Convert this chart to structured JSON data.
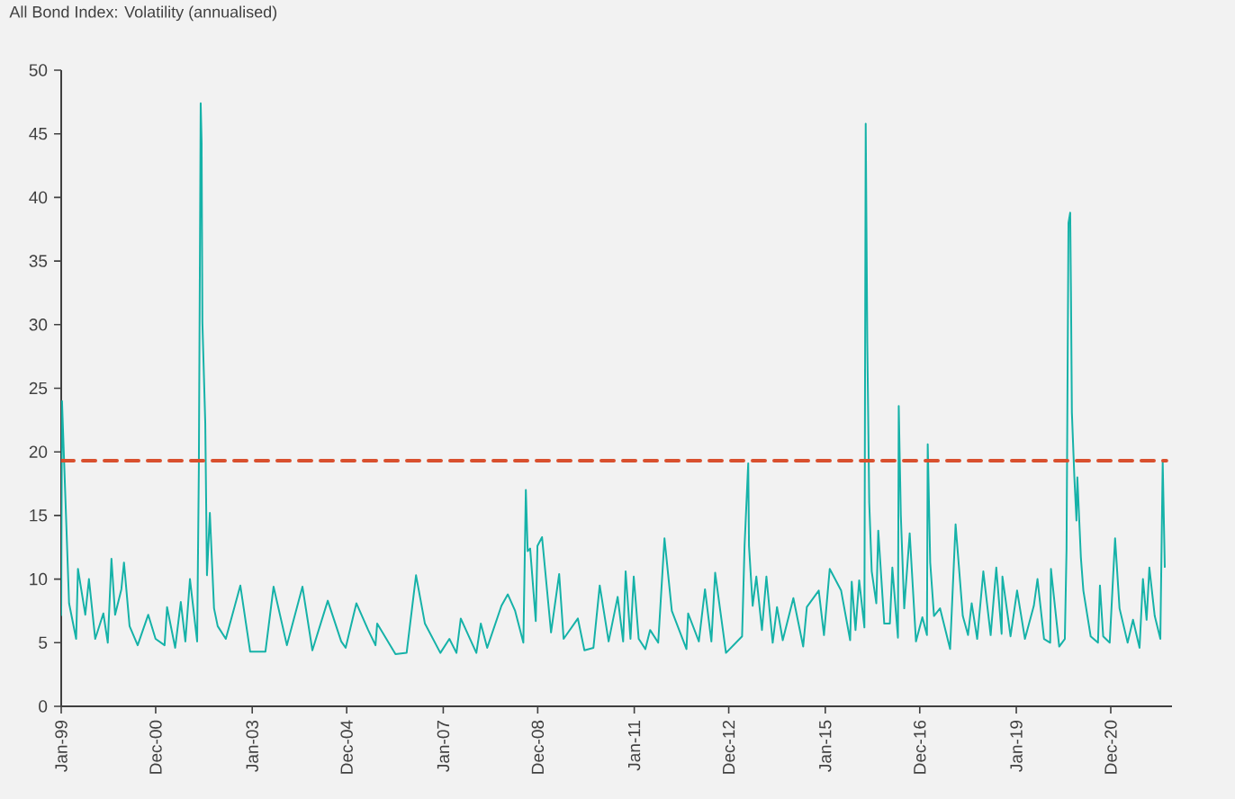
{
  "chart_data": {
    "type": "line",
    "title": "All Bond Index: Volatility (annualised)",
    "xlim": [
      "1999-01-01",
      "2022-04-06"
    ],
    "ylim": [
      0,
      50
    ],
    "yticks": [
      0,
      5,
      10,
      15,
      20,
      25,
      30,
      35,
      40,
      45,
      50
    ],
    "xticks": [
      {
        "value": "1999-01-01",
        "label": "Jan-99"
      },
      {
        "value": "2000-12-24",
        "label": "Dec-00"
      },
      {
        "value": "2003-01-01",
        "label": "Jan-03"
      },
      {
        "value": "2004-12-24",
        "label": "Dec-04"
      },
      {
        "value": "2007-01-01",
        "label": "Jan-07"
      },
      {
        "value": "2008-12-24",
        "label": "Dec-08"
      },
      {
        "value": "2011-01-01",
        "label": "Jan-11"
      },
      {
        "value": "2012-12-24",
        "label": "Dec-12"
      },
      {
        "value": "2015-01-01",
        "label": "Jan-15"
      },
      {
        "value": "2016-12-24",
        "label": "Dec-16"
      },
      {
        "value": "2019-01-01",
        "label": "Jan-19"
      },
      {
        "value": "2020-12-24",
        "label": "Dec-20"
      }
    ],
    "x": [
      "1999-01-01",
      "1999-01-07",
      "1999-03-02",
      "1999-04-25",
      "1999-05-09",
      "1999-07-04",
      "1999-08-01",
      "1999-09-18",
      "1999-11-19",
      "1999-12-23",
      "2000-01-20",
      "2000-02-17",
      "2000-04-05",
      "2000-04-25",
      "2000-06-07",
      "2000-08-08",
      "2000-10-28",
      "2000-12-23",
      "2001-03-02",
      "2001-03-21",
      "2001-05-22",
      "2001-07-04",
      "2001-08-08",
      "2001-09-12",
      "2001-11-06",
      "2001-11-19",
      "2001-12-03",
      "2001-12-10",
      "2001-12-16",
      "2002-01-07",
      "2002-01-20",
      "2002-02-11",
      "2002-03-15",
      "2002-04-12",
      "2002-06-13",
      "2002-10-02",
      "2002-12-16",
      "2003-04-12",
      "2003-06-13",
      "2003-09-23",
      "2004-01-20",
      "2004-04-05",
      "2004-08-01",
      "2004-11-12",
      "2004-12-16",
      "2005-03-08",
      "2005-06-06",
      "2005-08-01",
      "2005-08-14",
      "2006-01-01",
      "2006-03-27",
      "2006-06-07",
      "2006-08-14",
      "2006-12-10",
      "2007-02-17",
      "2007-04-12",
      "2007-05-15",
      "2007-09-11",
      "2007-10-15",
      "2007-12-03",
      "2008-03-21",
      "2008-05-09",
      "2008-07-04",
      "2008-09-05",
      "2008-09-24",
      "2008-10-08",
      "2008-10-27",
      "2008-12-09",
      "2008-12-22",
      "2009-01-26",
      "2009-04-05",
      "2009-06-06",
      "2009-07-10",
      "2009-10-27",
      "2009-12-16",
      "2010-02-23",
      "2010-04-12",
      "2010-06-19",
      "2010-08-27",
      "2010-10-08",
      "2010-10-27",
      "2010-12-03",
      "2010-12-28",
      "2011-02-04",
      "2011-03-27",
      "2011-05-02",
      "2011-07-03",
      "2011-08-20",
      "2011-10-15",
      "2012-02-04",
      "2012-02-17",
      "2012-05-09",
      "2012-06-25",
      "2012-08-13",
      "2012-09-11",
      "2012-12-03",
      "2013-04-05",
      "2013-04-24",
      "2013-05-22",
      "2013-05-28",
      "2013-06-25",
      "2013-07-23",
      "2013-09-04",
      "2013-10-08",
      "2013-11-25",
      "2013-12-28",
      "2014-02-10",
      "2014-05-02",
      "2014-07-16",
      "2014-08-13",
      "2014-11-12",
      "2014-12-22",
      "2015-02-04",
      "2015-05-02",
      "2015-07-10",
      "2015-07-22",
      "2015-08-20",
      "2015-09-17",
      "2015-10-27",
      "2015-11-06",
      "2015-11-18",
      "2015-12-03",
      "2015-12-22",
      "2016-01-26",
      "2016-02-10",
      "2016-03-27",
      "2016-05-09",
      "2016-05-28",
      "2016-07-10",
      "2016-07-16",
      "2016-08-01",
      "2016-08-27",
      "2016-10-08",
      "2016-11-25",
      "2017-01-13",
      "2017-02-17",
      "2017-02-23",
      "2017-03-14",
      "2017-04-12",
      "2017-05-28",
      "2017-08-13",
      "2017-09-24",
      "2017-11-18",
      "2017-12-28",
      "2018-01-25",
      "2018-03-08",
      "2018-04-24",
      "2018-06-19",
      "2018-08-01",
      "2018-09-11",
      "2018-09-17",
      "2018-11-18",
      "2019-01-07",
      "2019-03-08",
      "2019-05-15",
      "2019-06-12",
      "2019-08-01",
      "2019-09-17",
      "2019-09-23",
      "2019-11-25",
      "2020-01-07",
      "2020-01-20",
      "2020-02-04",
      "2020-02-17",
      "2020-02-23",
      "2020-03-01",
      "2020-03-20",
      "2020-04-05",
      "2020-04-12",
      "2020-05-09",
      "2020-05-28",
      "2020-07-23",
      "2020-09-17",
      "2020-10-02",
      "2020-10-27",
      "2020-12-16",
      "2021-01-26",
      "2021-03-01",
      "2021-05-02",
      "2021-06-12",
      "2021-08-01",
      "2021-08-27",
      "2021-09-24",
      "2021-10-15",
      "2021-11-25",
      "2022-01-07",
      "2022-01-25",
      "2022-02-10"
    ],
    "series": [
      {
        "color": "#16b2a8",
        "values": [
          7.1,
          24.0,
          8.1,
          5.3,
          10.8,
          7.2,
          10.0,
          5.3,
          7.3,
          5.0,
          11.6,
          7.2,
          9.2,
          11.3,
          6.3,
          4.8,
          7.2,
          5.3,
          4.8,
          7.8,
          4.6,
          8.2,
          5.1,
          10.0,
          5.1,
          18.7,
          47.4,
          44.4,
          30.2,
          22.3,
          10.3,
          15.2,
          7.7,
          6.3,
          5.3,
          9.5,
          4.3,
          4.3,
          9.4,
          4.8,
          9.4,
          4.4,
          8.3,
          5.1,
          4.6,
          8.1,
          6.0,
          4.8,
          6.5,
          4.1,
          4.2,
          10.3,
          6.5,
          4.2,
          5.3,
          4.2,
          6.9,
          4.2,
          6.5,
          4.6,
          7.9,
          8.8,
          7.5,
          5.0,
          17.0,
          12.2,
          12.4,
          6.7,
          12.6,
          13.3,
          5.8,
          10.4,
          5.3,
          6.9,
          4.4,
          4.6,
          9.5,
          5.1,
          8.6,
          5.1,
          10.6,
          5.3,
          10.2,
          5.3,
          4.5,
          6.0,
          5.0,
          13.2,
          7.5,
          4.5,
          7.3,
          5.1,
          9.2,
          5.1,
          10.5,
          4.2,
          5.5,
          12.6,
          19.1,
          12.6,
          7.9,
          10.2,
          6.0,
          10.2,
          5.0,
          7.8,
          5.2,
          8.5,
          4.7,
          7.8,
          9.1,
          5.6,
          10.8,
          9.1,
          5.2,
          9.8,
          6.0,
          9.9,
          6.2,
          45.8,
          28.6,
          16.0,
          10.6,
          8.1,
          13.8,
          6.5,
          6.5,
          10.9,
          5.4,
          23.6,
          15.0,
          7.7,
          13.6,
          5.1,
          7.0,
          5.6,
          20.6,
          11.3,
          7.1,
          7.7,
          4.5,
          14.3,
          7.1,
          5.6,
          8.1,
          5.3,
          10.6,
          5.6,
          10.9,
          5.7,
          10.2,
          5.5,
          9.1,
          5.3,
          7.9,
          10.0,
          5.3,
          5.0,
          10.8,
          4.7,
          5.3,
          12.3,
          38.0,
          38.8,
          32.5,
          23.1,
          18.0,
          14.6,
          18.0,
          11.7,
          9.1,
          5.5,
          5.0,
          9.5,
          5.5,
          5.0,
          13.2,
          7.7,
          5.0,
          6.8,
          4.6,
          10.0,
          6.8,
          10.9,
          7.1,
          5.3,
          19.2,
          10.9
        ]
      }
    ],
    "ref_lines": [
      {
        "axis": "y",
        "value": 19.3,
        "color": "#d9502e",
        "line_style": "dashed"
      }
    ]
  }
}
